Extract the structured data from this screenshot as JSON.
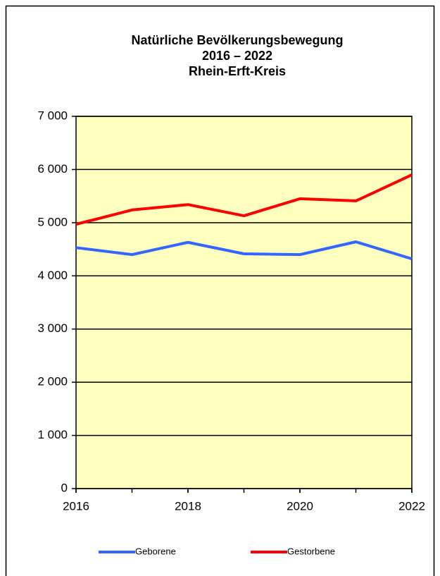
{
  "chart_data": {
    "type": "line",
    "title": [
      "Natürliche Bevölkerungsbewegung",
      "2016 – 2022",
      "Rhein-Erft-Kreis"
    ],
    "x": [
      2016,
      2017,
      2018,
      2019,
      2020,
      2021,
      2022
    ],
    "xlim": [
      2016,
      2022
    ],
    "xticks": [
      2016,
      2018,
      2020,
      2022
    ],
    "ylim": [
      0,
      7000
    ],
    "yticks": [
      0,
      {
        "value": 1000,
        "label": "1 000"
      },
      {
        "value": 2000,
        "label": "2 000"
      },
      {
        "value": 3000,
        "label": "3 000"
      },
      {
        "value": 4000,
        "label": "4 000"
      },
      {
        "value": 5000,
        "label": "5 000"
      },
      {
        "value": 6000,
        "label": "6 000"
      },
      {
        "value": 7000,
        "label": "7 000"
      }
    ],
    "grid": true,
    "legend": "bottom",
    "series": [
      {
        "name": "Geborene",
        "color": "#3366ff",
        "values": [
          4530,
          4400,
          4630,
          4415,
          4400,
          4640,
          4320
        ]
      },
      {
        "name": "Gestorbene",
        "color": "#ff0000",
        "values": [
          4970,
          5240,
          5340,
          5130,
          5450,
          5410,
          5900
        ]
      }
    ]
  }
}
